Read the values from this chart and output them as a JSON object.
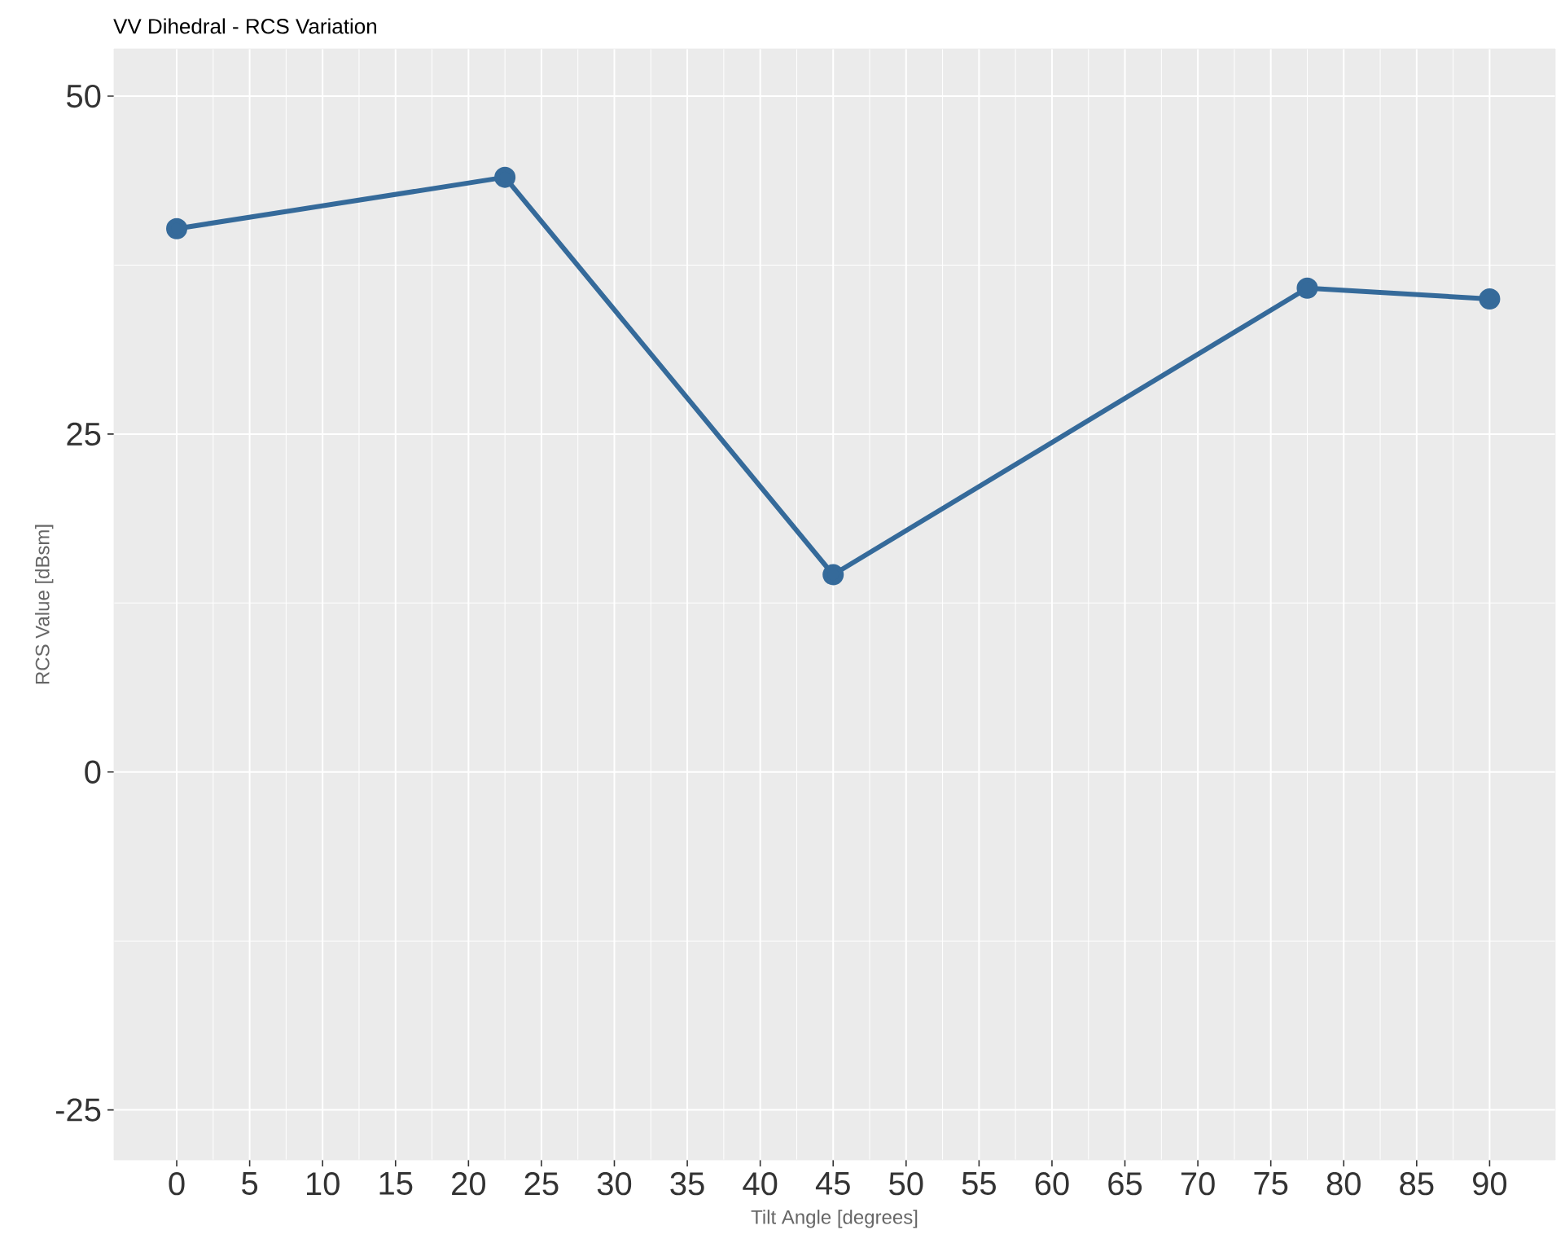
{
  "chart_data": {
    "type": "line",
    "title": "VV Dihedral - RCS Variation",
    "xlabel": "Tilt Angle [degrees]",
    "ylabel": "RCS Value [dBsm]",
    "x": [
      0,
      22.5,
      45,
      77.5,
      90
    ],
    "series": [
      {
        "color": "#356a9a",
        "values": [
          40.2,
          44.0,
          14.6,
          35.8,
          35.0
        ]
      }
    ],
    "xlim": [
      -4.3,
      94.5
    ],
    "ylim": [
      -28.7,
      53.5
    ],
    "xticks": [
      0,
      5,
      10,
      15,
      20,
      25,
      30,
      35,
      40,
      45,
      50,
      55,
      60,
      65,
      70,
      75,
      80,
      85,
      90
    ],
    "yticks": [
      -25,
      0,
      25,
      50
    ],
    "grid": true,
    "marker": "circle",
    "line_style": "solid"
  }
}
